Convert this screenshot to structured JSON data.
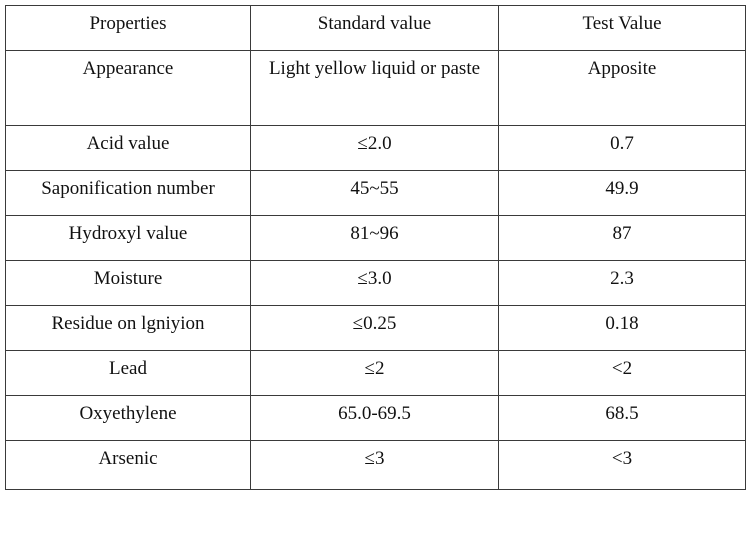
{
  "table": {
    "headers": [
      "Properties",
      "Standard value",
      "Test Value"
    ],
    "rows": [
      [
        "Appearance",
        "Light yellow liquid or paste",
        "Apposite"
      ],
      [
        "Acid value",
        "≤2.0",
        "0.7"
      ],
      [
        "Saponification number",
        "45~55",
        "49.9"
      ],
      [
        "Hydroxyl value",
        "81~96",
        "87"
      ],
      [
        "Moisture",
        "≤3.0",
        "2.3"
      ],
      [
        "Residue on lgniyion",
        "≤0.25",
        "0.18"
      ],
      [
        "Lead",
        "≤2",
        "<2"
      ],
      [
        "Oxyethylene",
        "65.0-69.5",
        "68.5"
      ],
      [
        "Arsenic",
        "≤3",
        "<3"
      ]
    ]
  }
}
